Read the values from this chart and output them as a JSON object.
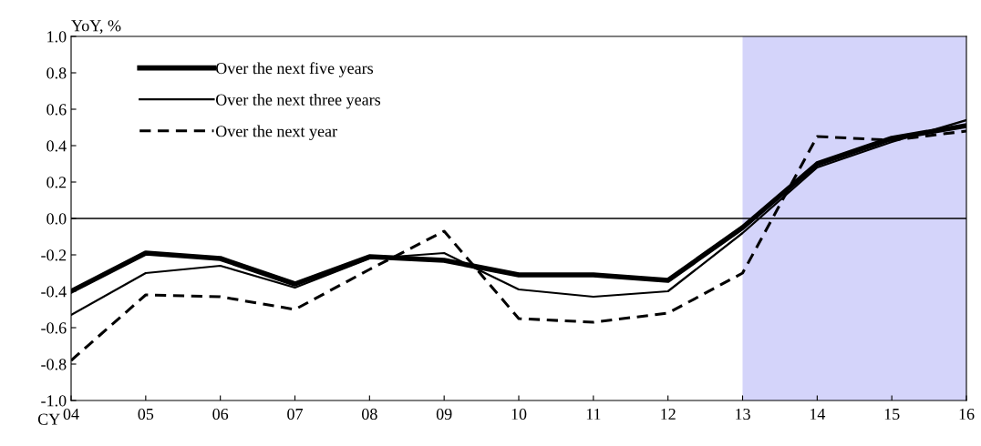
{
  "chart_data": {
    "type": "line",
    "ylabel": "YoY, %",
    "xlabel": "CY",
    "x": [
      2004,
      2005,
      2006,
      2007,
      2008,
      2009,
      2010,
      2011,
      2012,
      2013,
      2014,
      2015,
      2016
    ],
    "series": [
      {
        "name": "Over the next five years",
        "color": "#000000",
        "line_style": "solid",
        "values": [
          -0.4,
          -0.19,
          -0.22,
          -0.36,
          -0.21,
          -0.23,
          -0.31,
          -0.31,
          -0.34,
          -0.05,
          0.3,
          0.44,
          0.51
        ]
      },
      {
        "name": "Over the next three years",
        "color": "#000000",
        "line_style": "solid",
        "values": [
          -0.53,
          -0.3,
          -0.26,
          -0.38,
          -0.22,
          -0.19,
          -0.39,
          -0.43,
          -0.4,
          -0.08,
          0.28,
          0.42,
          0.54
        ]
      },
      {
        "name": "Over the next year",
        "color": "#000000",
        "line_style": "dashed",
        "values": [
          -0.78,
          -0.42,
          -0.43,
          -0.5,
          -0.28,
          -0.07,
          -0.55,
          -0.57,
          -0.52,
          -0.3,
          0.45,
          0.43,
          0.48
        ]
      }
    ],
    "xlim": [
      2004,
      2016
    ],
    "xticks": [
      {
        "value": 2004,
        "label": "04"
      },
      {
        "value": 2005,
        "label": "05"
      },
      {
        "value": 2006,
        "label": "06"
      },
      {
        "value": 2007,
        "label": "07"
      },
      {
        "value": 2008,
        "label": "08"
      },
      {
        "value": 2009,
        "label": "09"
      },
      {
        "value": 2010,
        "label": "10"
      },
      {
        "value": 2011,
        "label": "11"
      },
      {
        "value": 2012,
        "label": "12"
      },
      {
        "value": 2013,
        "label": "13"
      },
      {
        "value": 2014,
        "label": "14"
      },
      {
        "value": 2015,
        "label": "15"
      },
      {
        "value": 2016,
        "label": "16"
      }
    ],
    "ylim": [
      -1.0,
      1.0
    ],
    "yticks": [
      {
        "value": -1.0,
        "label": "-1.0"
      },
      {
        "value": -0.8,
        "label": "-0.8"
      },
      {
        "value": -0.6,
        "label": "-0.6"
      },
      {
        "value": -0.4,
        "label": "-0.4"
      },
      {
        "value": -0.2,
        "label": "-0.2"
      },
      {
        "value": 0.0,
        "label": "0.0"
      },
      {
        "value": 0.2,
        "label": "0.2"
      },
      {
        "value": 0.4,
        "label": "0.4"
      },
      {
        "value": 0.6,
        "label": "0.6"
      },
      {
        "value": 0.8,
        "label": "0.8"
      },
      {
        "value": 1.0,
        "label": "1.0"
      }
    ],
    "ref_lines": [
      {
        "axis": "y",
        "value": 0.0,
        "color": "#000000"
      }
    ],
    "bands": [
      {
        "axis": "x",
        "from": 2013,
        "to": 2016,
        "color": "#d4d4fa"
      }
    ],
    "grid": false,
    "legend": "top left",
    "marker": "none"
  }
}
